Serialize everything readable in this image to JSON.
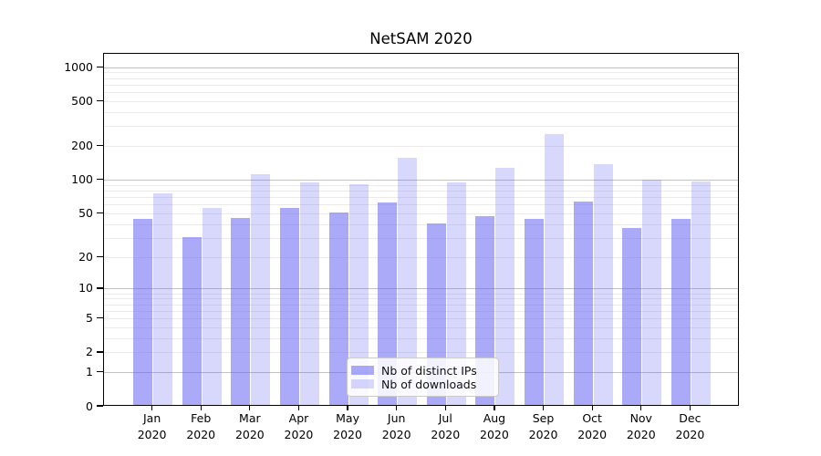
{
  "chart_data": {
    "type": "bar",
    "title": "NetSAM 2020",
    "categories": [
      "Jan",
      "Feb",
      "Mar",
      "Apr",
      "May",
      "Jun",
      "Jul",
      "Aug",
      "Sep",
      "Oct",
      "Nov",
      "Dec"
    ],
    "x_sublabel": "2020",
    "series": [
      {
        "name": "Nb of distinct IPs",
        "color": "#6464f2",
        "opacity": 0.55,
        "values": [
          45,
          31,
          46,
          56,
          51,
          63,
          41,
          48,
          45,
          65,
          37,
          45
        ]
      },
      {
        "name": "Nb of downloads",
        "color": "#6464f2",
        "opacity": 0.25,
        "values": [
          77,
          56,
          113,
          96,
          93,
          159,
          95,
          130,
          260,
          139,
          102,
          97
        ]
      }
    ],
    "y_axis": {
      "scale": "log1p",
      "ticks": [
        0,
        1,
        2,
        5,
        10,
        20,
        50,
        100,
        200,
        500,
        1000
      ],
      "major_gridlines": [
        1,
        10,
        100,
        1000
      ],
      "max": 1350
    },
    "legend": {
      "position": "lower center"
    },
    "grid": true,
    "colors": {
      "major_grid": "#c2c2c2",
      "minor_grid": "#ebebeb",
      "axis": "#000000",
      "text": "#000000",
      "background": "#ffffff"
    }
  }
}
